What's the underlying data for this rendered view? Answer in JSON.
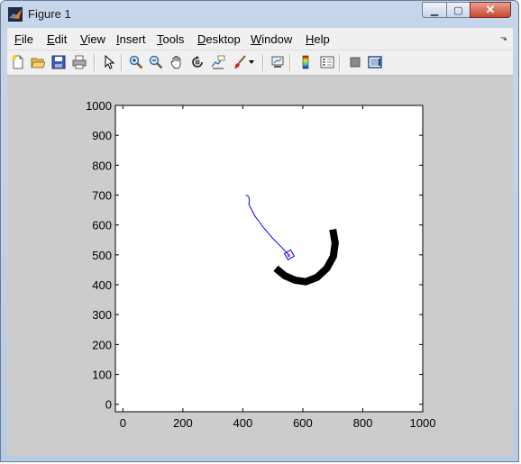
{
  "window": {
    "title": "Figure 1"
  },
  "titlebar": {
    "minimize_glyph": "▁",
    "maximize_glyph": "▢",
    "close_glyph": "✕"
  },
  "menubar": {
    "items": [
      {
        "key": "F",
        "rest": "ile"
      },
      {
        "key": "E",
        "rest": "dit"
      },
      {
        "key": "V",
        "rest": "iew"
      },
      {
        "key": "I",
        "rest": "nsert"
      },
      {
        "key": "T",
        "rest": "ools"
      },
      {
        "key": "D",
        "rest": "esktop"
      },
      {
        "key": "W",
        "rest": "indow"
      },
      {
        "key": "H",
        "rest": "elp"
      }
    ],
    "dock_glyph": "⬎"
  },
  "toolbar": {
    "icons": [
      "new-figure-icon",
      "open-file-icon",
      "save-icon",
      "print-icon",
      "edit-plot-arrow-icon",
      "zoom-in-icon",
      "zoom-out-icon",
      "pan-hand-icon",
      "rotate-3d-icon",
      "data-cursor-icon",
      "brush-icon",
      "brush-dropdown-icon",
      "link-plot-icon",
      "colorbar-icon",
      "legend-icon",
      "hide-plot-tools-icon",
      "show-plot-tools-icon"
    ]
  },
  "chart_data": {
    "type": "line",
    "title": "",
    "xlabel": "",
    "ylabel": "",
    "xlim": [
      -25,
      1000
    ],
    "ylim": [
      -25,
      1000
    ],
    "xticks": [
      0,
      200,
      400,
      600,
      800,
      1000
    ],
    "yticks": [
      0,
      100,
      200,
      300,
      400,
      500,
      600,
      700,
      800,
      900,
      1000
    ],
    "grid": false,
    "series": [
      {
        "color": "#0000ff",
        "style": "thin",
        "x": [
          410,
          420,
          422,
          420,
          440,
          470,
          500,
          530,
          548,
          555
        ],
        "y": [
          700,
          695,
          680,
          670,
          630,
          590,
          555,
          525,
          505,
          500
        ]
      },
      {
        "color": "#000000",
        "style": "thick-arc",
        "x": [
          700,
          708,
          702,
          680,
          648,
          610,
          575,
          540,
          510
        ],
        "y": [
          585,
          540,
          495,
          455,
          425,
          410,
          415,
          430,
          455
        ]
      }
    ],
    "markers": [
      {
        "shape": "square",
        "color": "#0000ff",
        "x": 555,
        "y": 500
      },
      {
        "shape": "dot",
        "color": "#ff00ff",
        "x": 553,
        "y": 497
      }
    ],
    "colors": {
      "axes": "#000000",
      "figure_bg": "#cccccc",
      "axes_bg": "#ffffff"
    }
  }
}
